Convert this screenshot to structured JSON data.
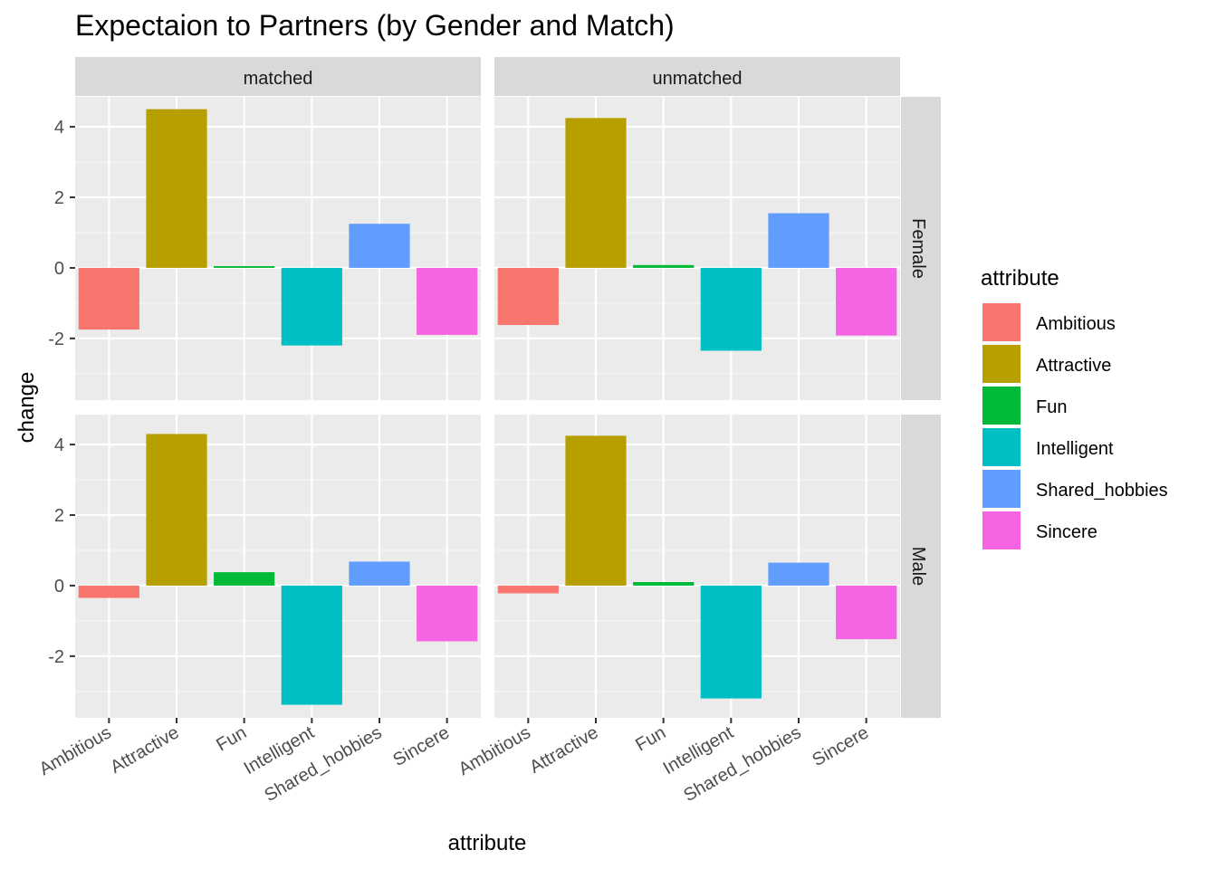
{
  "chart_data": {
    "type": "bar",
    "title": "Expectaion to Partners (by Gender and Match)",
    "xlabel": "attribute",
    "ylabel": "change",
    "legend_title": "attribute",
    "legend_position": "right",
    "grid": true,
    "ylim": [
      -3.75,
      4.85
    ],
    "yticks": [
      -2,
      0,
      2,
      4
    ],
    "categories": [
      "Ambitious",
      "Attractive",
      "Fun",
      "Intelligent",
      "Shared_hobbies",
      "Sincere"
    ],
    "colors": [
      "#F8766D",
      "#B79F00",
      "#00BA38",
      "#00BFC4",
      "#619CFF",
      "#F564E3"
    ],
    "col_facets": [
      "matched",
      "unmatched"
    ],
    "row_facets": [
      "Female",
      "Male"
    ],
    "panels": [
      {
        "col": "matched",
        "row": "Female",
        "values": [
          -1.75,
          4.5,
          0.05,
          -2.2,
          1.25,
          -1.9
        ]
      },
      {
        "col": "unmatched",
        "row": "Female",
        "values": [
          -1.62,
          4.25,
          0.08,
          -2.35,
          1.55,
          -1.92
        ]
      },
      {
        "col": "matched",
        "row": "Male",
        "values": [
          -0.35,
          4.3,
          0.38,
          -3.38,
          0.68,
          -1.58
        ]
      },
      {
        "col": "unmatched",
        "row": "Male",
        "values": [
          -0.22,
          4.25,
          0.1,
          -3.2,
          0.65,
          -1.52
        ]
      }
    ]
  }
}
